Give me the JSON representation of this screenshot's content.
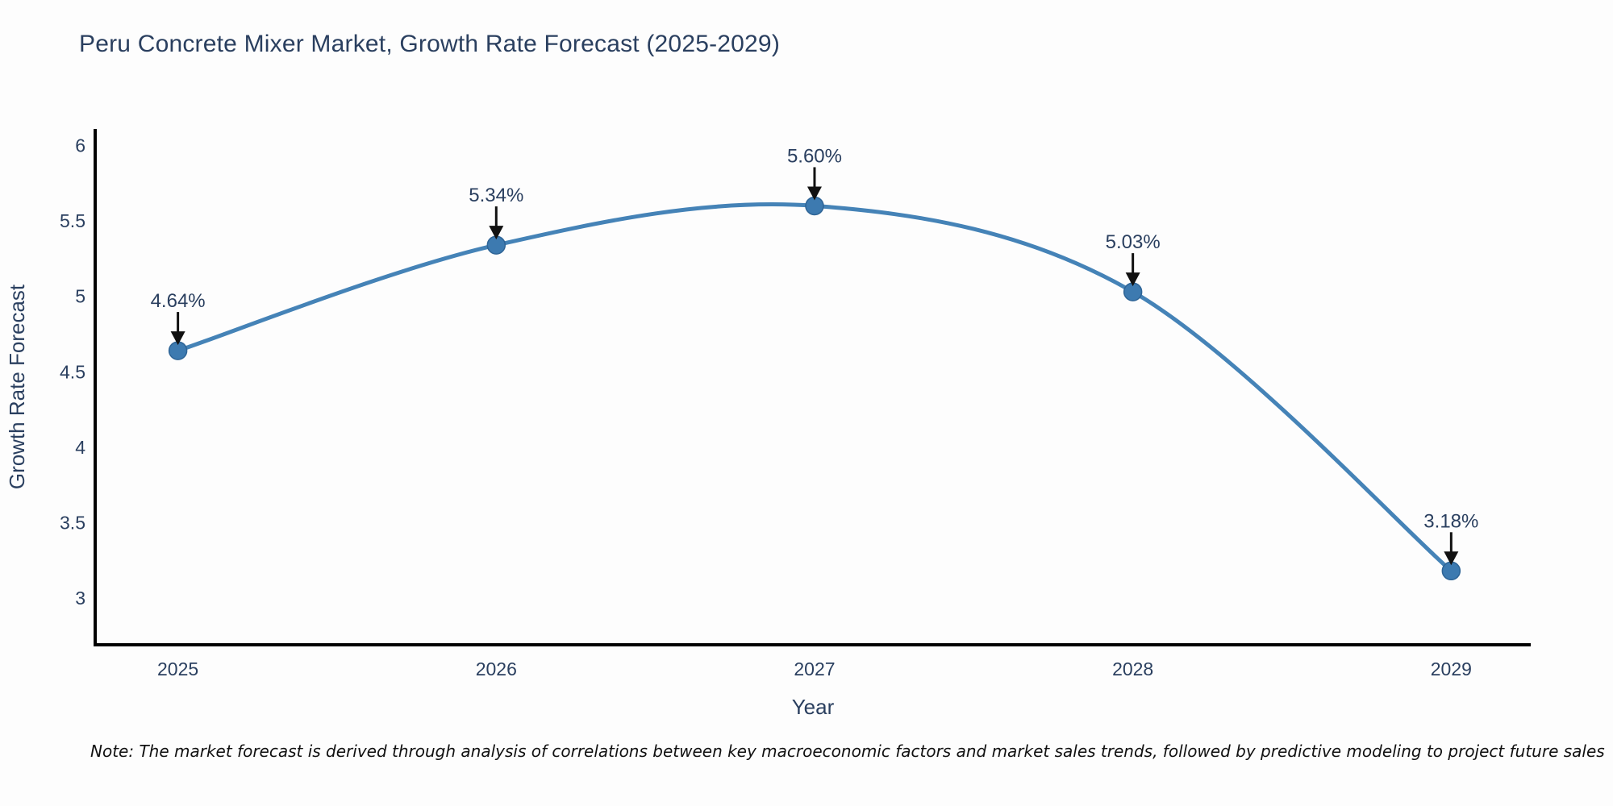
{
  "title": "Peru Concrete Mixer Market, Growth Rate Forecast (2025-2029)",
  "note": "Note: The market forecast is derived through analysis of correlations between key macroeconomic factors and market sales trends, followed by predictive modeling to project future sales",
  "chart_data": {
    "type": "line",
    "title": "Peru Concrete Mixer Market, Growth Rate Forecast (2025-2029)",
    "xlabel": "Year",
    "ylabel": "Growth Rate Forecast",
    "x": [
      2025,
      2026,
      2027,
      2028,
      2029
    ],
    "values": [
      4.64,
      5.34,
      5.6,
      5.03,
      3.18
    ],
    "point_labels": [
      "4.64%",
      "5.34%",
      "5.60%",
      "5.03%",
      "3.18%"
    ],
    "xticks": [
      "2025",
      "2026",
      "2027",
      "2028",
      "2029"
    ],
    "yticks": [
      3,
      3.5,
      4,
      4.5,
      5,
      5.5,
      6
    ],
    "xlim": [
      2024.74,
      2029.25
    ],
    "ylim": [
      2.69,
      6.11
    ],
    "line_shape": "spline",
    "grid": false,
    "legend": "none",
    "annotations_arrow": "down",
    "colors": {
      "line": "#4583b7",
      "marker": "#3d7ab0",
      "marker_edge": "#2e6496",
      "axis": "#000000",
      "text": "#2a3f5f",
      "annotation": "#2a3f5f",
      "arrow": "#111111",
      "background": "#fdfdfd"
    }
  }
}
